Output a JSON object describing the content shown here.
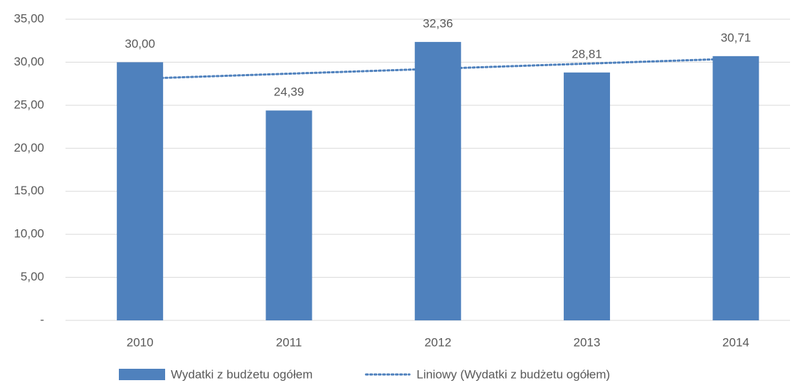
{
  "chart_data": {
    "type": "bar",
    "categories": [
      "2010",
      "2011",
      "2012",
      "2013",
      "2014"
    ],
    "series": [
      {
        "name": "Wydatki z budżetu ogółem",
        "color": "#4f81bd",
        "values": [
          30.0,
          24.39,
          32.36,
          28.81,
          30.71
        ],
        "value_labels": [
          "30,00",
          "24,39",
          "32,36",
          "28,81",
          "30,71"
        ]
      },
      {
        "name": "Liniowy (Wydatki z budżetu ogółem)",
        "color": "#4f81bd",
        "type": "line",
        "dash": "dotted",
        "values": [
          28.09,
          28.67,
          29.25,
          29.84,
          30.42
        ]
      }
    ],
    "ylim": [
      0,
      35
    ],
    "yticks": [
      {
        "value": 0,
        "label": "-"
      },
      {
        "value": 5,
        "label": "5,00"
      },
      {
        "value": 10,
        "label": "10,00"
      },
      {
        "value": 15,
        "label": "15,00"
      },
      {
        "value": 20,
        "label": "20,00"
      },
      {
        "value": 25,
        "label": "25,00"
      },
      {
        "value": 30,
        "label": "30,00"
      },
      {
        "value": 35,
        "label": "35,00"
      }
    ],
    "grid": true,
    "legend": "bottom"
  }
}
